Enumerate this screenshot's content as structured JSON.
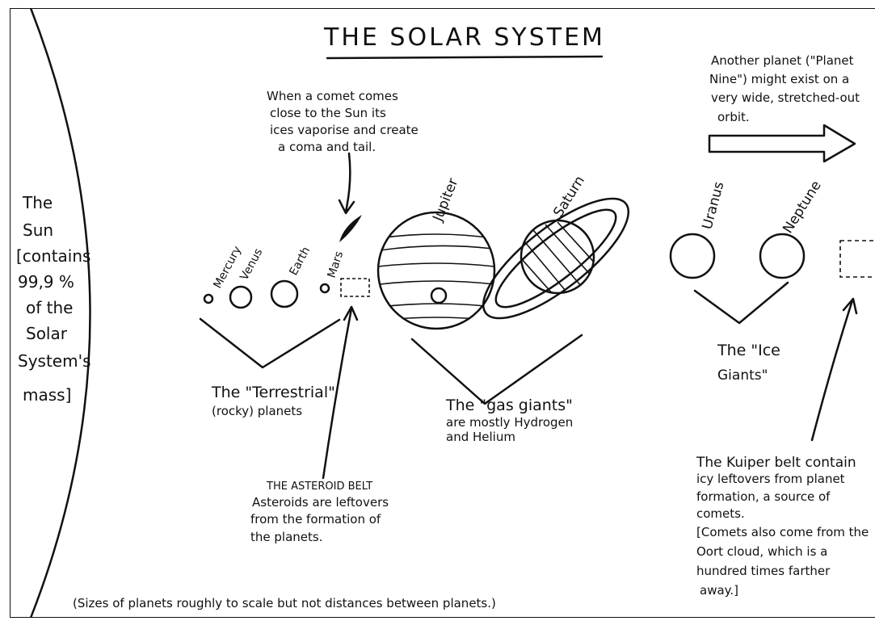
{
  "title": "THE SOLAR SYSTEM",
  "sun": {
    "lines": [
      "The",
      "Sun",
      "[contains",
      "99,9 %",
      "of the",
      "Solar",
      "System's",
      "mass]"
    ]
  },
  "planets": [
    "Mercury",
    "Venus",
    "Earth",
    "Mars",
    "Jupiter",
    "Saturn",
    "Uranus",
    "Neptune"
  ],
  "groups": {
    "terrestrial": [
      "The \"Terrestrial\"",
      "(rocky) planets"
    ],
    "gas": [
      "The \"gas giants\"",
      "are mostly Hydrogen",
      "and Helium"
    ],
    "ice": [
      "The \"Ice",
      "Giants\""
    ]
  },
  "comet_note": {
    "lines": [
      "When a comet comes",
      "close to the Sun its",
      "ices vaporise and create",
      "a coma and tail."
    ]
  },
  "asteroid_note": {
    "lines": [
      "THE ASTEROID BELT",
      "Asteroids are leftovers",
      "from the formation of",
      "the planets."
    ]
  },
  "planet_nine_note": {
    "lines": [
      "Another planet (\"Planet",
      "Nine\") might exist on a",
      "very wide, stretched-out",
      "orbit."
    ]
  },
  "kuiper_note": {
    "lines": [
      "The Kuiper belt contain",
      "icy leftovers from planet",
      "formation, a source of",
      "comets.",
      "[Comets also come from the",
      "Oort cloud, which is a",
      "hundred times farther",
      "away.]"
    ]
  },
  "footnote": "(Sizes of planets roughly to scale but not distances between planets.)"
}
